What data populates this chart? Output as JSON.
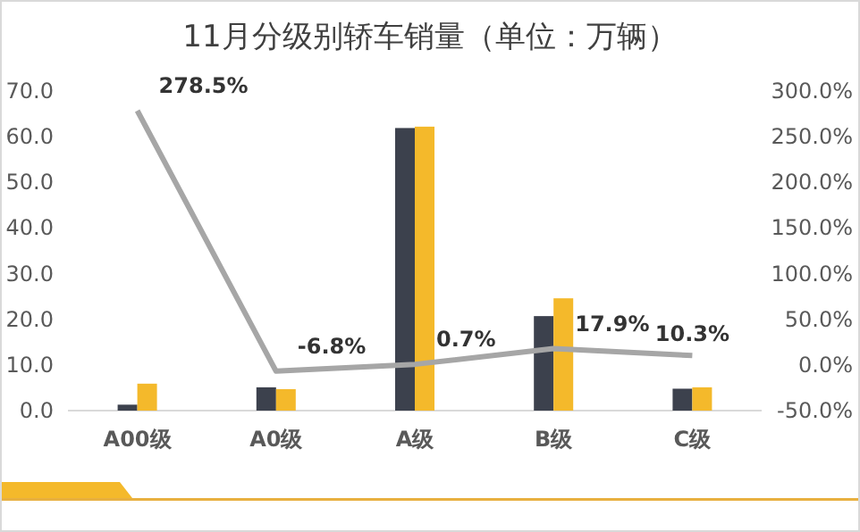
{
  "chart_data": {
    "type": "bar",
    "title": "11月分级别轿车销量（单位：万辆）",
    "categories": [
      "A00级",
      "A0级",
      "A级",
      "B级",
      "C级"
    ],
    "series": [
      {
        "color": "#3c414d",
        "values": [
          1.3,
          5.1,
          61.9,
          20.7,
          4.8
        ]
      },
      {
        "color": "#f4b92b",
        "values": [
          5.9,
          4.7,
          62.2,
          24.6,
          5.1
        ]
      },
      {
        "type": "line",
        "axis": "y2",
        "color": "#a6a6a6",
        "values": [
          278.5,
          -6.8,
          0.7,
          17.9,
          10.3
        ],
        "value_labels": [
          "278.5%",
          "-6.8%",
          "0.7%",
          "17.9%",
          "10.3%"
        ]
      }
    ],
    "ylim": [
      0,
      70
    ],
    "yticks": [
      {
        "value": 0,
        "label": "0.0"
      },
      {
        "value": 10,
        "label": "10.0"
      },
      {
        "value": 20,
        "label": "20.0"
      },
      {
        "value": 30,
        "label": "30.0"
      },
      {
        "value": 40,
        "label": "40.0"
      },
      {
        "value": 50,
        "label": "50.0"
      },
      {
        "value": 60,
        "label": "60.0"
      },
      {
        "value": 70,
        "label": "70.0"
      }
    ],
    "y2lim": [
      -50,
      300
    ],
    "y2ticks": [
      {
        "value": -50,
        "label": "-50.0%"
      },
      {
        "value": 0,
        "label": "0.0%"
      },
      {
        "value": 50,
        "label": "50.0%"
      },
      {
        "value": 100,
        "label": "100.0%"
      },
      {
        "value": 150,
        "label": "150.0%"
      },
      {
        "value": 200,
        "label": "200.0%"
      },
      {
        "value": 250,
        "label": "250.0%"
      },
      {
        "value": 300,
        "label": "300.0%"
      }
    ],
    "grid": false
  }
}
